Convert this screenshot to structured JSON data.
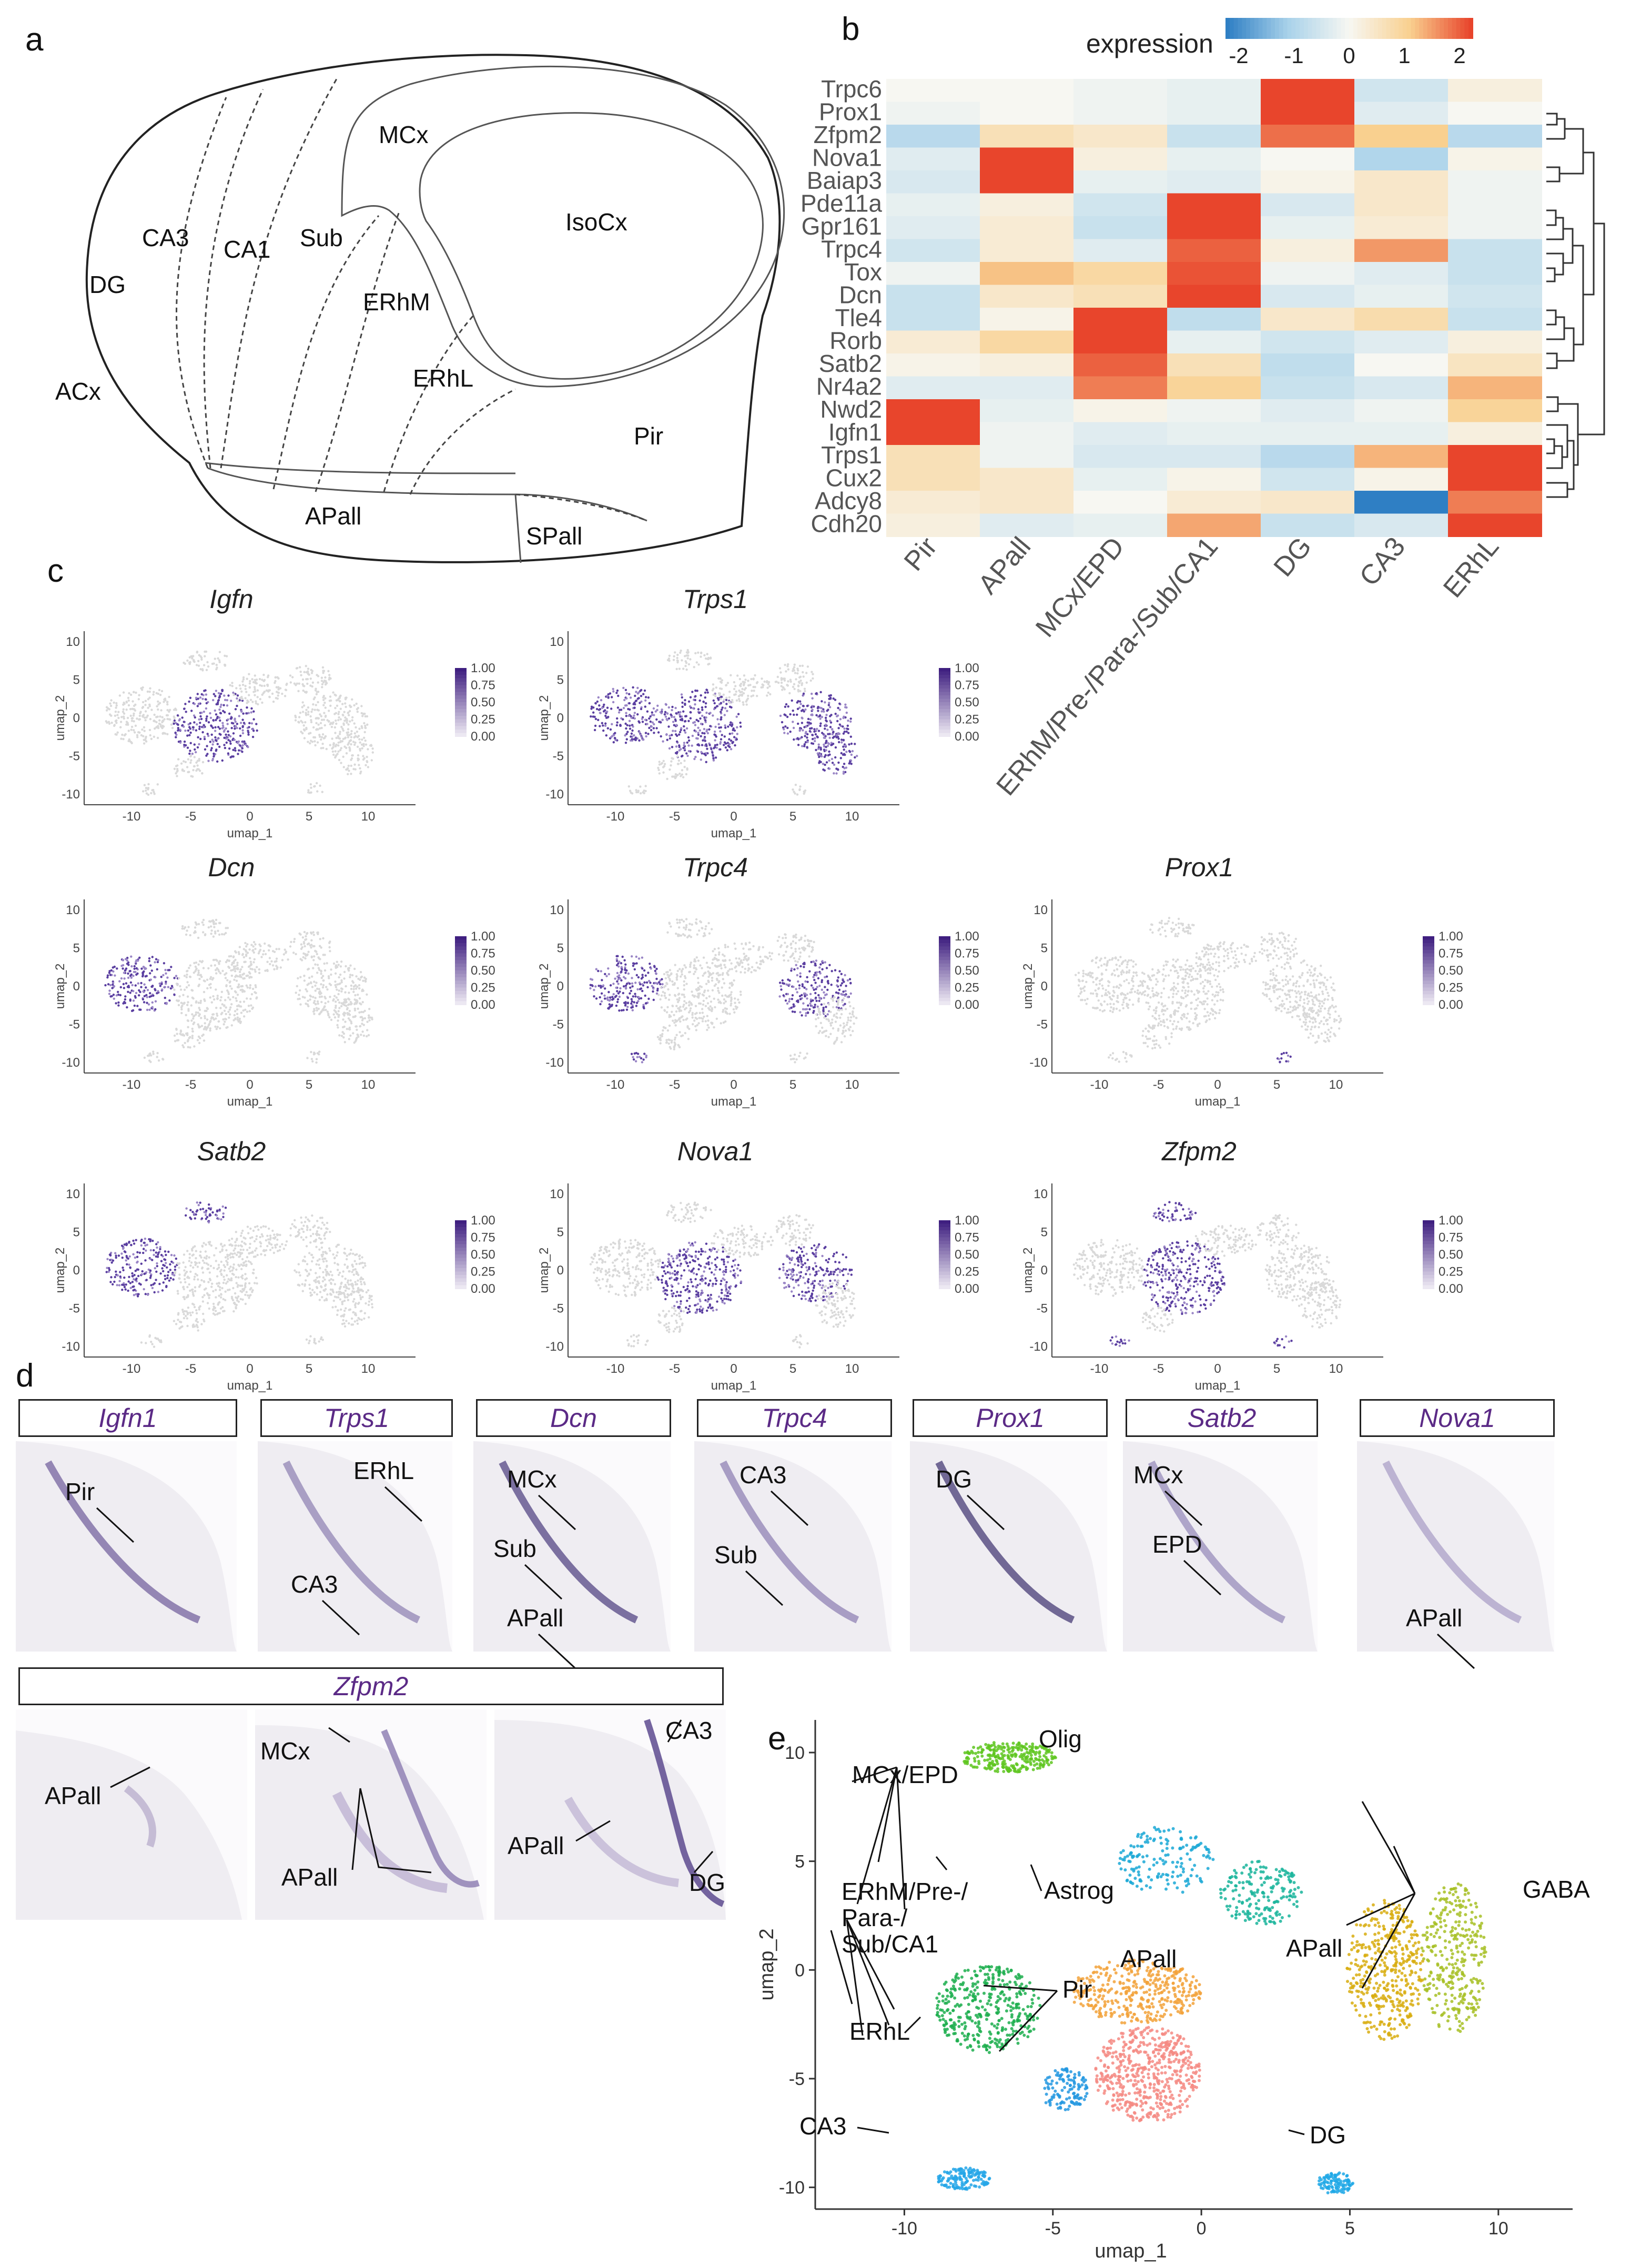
{
  "panels": {
    "a": "a",
    "b": "b",
    "c": "c",
    "d": "d",
    "e": "e"
  },
  "brain": {
    "regions": [
      "MCx",
      "IsoCx",
      "CA3",
      "CA1",
      "Sub",
      "DG",
      "ERhM",
      "ERhL",
      "ACx",
      "Pir",
      "APall",
      "SPall"
    ]
  },
  "heatmap": {
    "legend_title": "expression",
    "legend_ticks": [
      "-2",
      "-1",
      "0",
      "1",
      "2"
    ],
    "genes": [
      "Trpc6",
      "Prox1",
      "Zfpm2",
      "Nova1",
      "Baiap3",
      "Pde11a",
      "Gpr161",
      "Trpc4",
      "Tox",
      "Dcn",
      "Tle4",
      "Rorb",
      "Satb2",
      "Nr4a2",
      "Nwd2",
      "Igfn1",
      "Trps1",
      "Cux2",
      "Adcy8",
      "Cdh20"
    ],
    "columns": [
      "Pir",
      "APall",
      "MCx/EPD",
      "ERhM/Pre-/Para-/Sub/CA1",
      "DG",
      "CA3",
      "ERhL"
    ]
  },
  "chart_data": [
    {
      "type": "heatmap",
      "title": "",
      "legend": "expression",
      "range": [
        -2,
        2
      ],
      "rows": [
        "Trpc6",
        "Prox1",
        "Zfpm2",
        "Nova1",
        "Baiap3",
        "Pde11a",
        "Gpr161",
        "Trpc4",
        "Tox",
        "Dcn",
        "Tle4",
        "Rorb",
        "Satb2",
        "Nr4a2",
        "Nwd2",
        "Igfn1",
        "Trps1",
        "Cux2",
        "Adcy8",
        "Cdh20"
      ],
      "columns": [
        "Pir",
        "APall",
        "MCx/EPD",
        "ERhM/Pre-/Para-/Sub/CA1",
        "DG",
        "CA3",
        "ERhL"
      ],
      "values": [
        [
          0.0,
          0.0,
          -0.1,
          -0.2,
          2.0,
          -0.5,
          0.2
        ],
        [
          -0.1,
          0.0,
          -0.1,
          -0.2,
          2.0,
          -0.3,
          0.0
        ],
        [
          -0.8,
          0.6,
          0.4,
          -0.6,
          1.7,
          1.0,
          -0.8
        ],
        [
          -0.3,
          2.0,
          0.2,
          -0.2,
          0.0,
          -0.9,
          0.1
        ],
        [
          -0.4,
          2.0,
          -0.2,
          -0.3,
          0.1,
          0.4,
          -0.1
        ],
        [
          -0.2,
          0.2,
          -0.5,
          2.0,
          -0.4,
          0.4,
          -0.1
        ],
        [
          -0.3,
          0.3,
          -0.6,
          2.0,
          -0.2,
          0.3,
          -0.1
        ],
        [
          -0.5,
          0.3,
          -0.3,
          1.8,
          0.2,
          1.4,
          -0.6
        ],
        [
          -0.1,
          1.1,
          0.8,
          1.9,
          -0.1,
          -0.3,
          -0.6
        ],
        [
          -0.6,
          0.4,
          0.6,
          2.0,
          -0.4,
          -0.2,
          -0.5
        ],
        [
          -0.6,
          0.1,
          2.0,
          -0.7,
          0.4,
          0.7,
          -0.6
        ],
        [
          0.3,
          0.8,
          2.0,
          -0.2,
          -0.5,
          -0.3,
          0.2
        ],
        [
          0.1,
          0.2,
          1.8,
          0.6,
          -0.7,
          0.0,
          0.5
        ],
        [
          -0.3,
          -0.3,
          1.6,
          0.9,
          -0.6,
          -0.4,
          1.2
        ],
        [
          2.0,
          -0.2,
          0.1,
          -0.1,
          -0.3,
          -0.1,
          0.9
        ],
        [
          2.0,
          -0.1,
          -0.3,
          -0.2,
          -0.2,
          -0.2,
          0.2
        ],
        [
          0.6,
          -0.1,
          -0.4,
          -0.4,
          -0.8,
          1.2,
          2.0
        ],
        [
          0.6,
          0.4,
          -0.2,
          0.1,
          -0.5,
          0.1,
          2.0
        ],
        [
          0.3,
          0.4,
          0.0,
          0.3,
          0.4,
          -2.0,
          1.6
        ],
        [
          0.2,
          -0.3,
          -0.2,
          1.3,
          -0.6,
          -0.4,
          2.0
        ]
      ]
    },
    {
      "type": "scatter",
      "title": "",
      "xlabel": "umap_1",
      "ylabel": "umap_2",
      "xlim": [
        -13,
        12.5
      ],
      "ylim": [
        -11,
        11.5
      ],
      "x_ticks": [
        -10,
        -5,
        0,
        5,
        10
      ],
      "y_ticks": [
        -10,
        -5,
        0,
        5,
        10
      ],
      "clusters": [
        {
          "name": "MCx/EPD",
          "color": "#5ec61e",
          "x": -6.5,
          "y": 9.8
        },
        {
          "name": "Olig",
          "color": "#1aa8d6",
          "x": -1.2,
          "y": 5.0
        },
        {
          "name": "Astrog",
          "color": "#19b49b",
          "x": 2.0,
          "y": 3.5
        },
        {
          "name": "APall (cortex-like)",
          "color": "#f2a23a",
          "x": -2.2,
          "y": -1.0
        },
        {
          "name": "Pir",
          "color": "#f48a82",
          "x": -1.8,
          "y": -4.8
        },
        {
          "name": "APall (GABA-side)",
          "color": "#d8ad0f",
          "x": 6.2,
          "y": 0.0
        },
        {
          "name": "GABA",
          "color": "#a7bf24",
          "x": 8.5,
          "y": 0.5
        },
        {
          "name": "ERhM/Pre-/Para-/Sub/CA1",
          "color": "#1cae4e",
          "x": -7.2,
          "y": -1.8
        },
        {
          "name": "ERhL",
          "color": "#2398e0",
          "x": -4.6,
          "y": -5.5
        },
        {
          "name": "CA3",
          "color": "#25a6e8",
          "x": -8.0,
          "y": -9.6
        },
        {
          "name": "DG",
          "color": "#1ea8e6",
          "x": 4.5,
          "y": -9.8
        }
      ]
    }
  ],
  "umap_panels": {
    "axis_x": "umap_1",
    "axis_y": "umap_2",
    "legend_ticks": [
      "1.00",
      "0.75",
      "0.50",
      "0.25",
      "0.00"
    ],
    "x_ticks": [
      "-10",
      "-5",
      "0",
      "5",
      "10"
    ],
    "y_ticks": [
      "10",
      "5",
      "0",
      "-5",
      "-10"
    ],
    "items": [
      {
        "gene": "Igfn"
      },
      {
        "gene": "Trps1"
      },
      {
        "gene": "Dcn"
      },
      {
        "gene": "Trpc4"
      },
      {
        "gene": "Prox1"
      },
      {
        "gene": "Satb2"
      },
      {
        "gene": "Nova1"
      },
      {
        "gene": "Zfpm2"
      }
    ]
  },
  "ish": {
    "top": [
      {
        "gene": "Igfn1",
        "labels": [
          "Pir"
        ]
      },
      {
        "gene": "Trps1",
        "labels": [
          "CA3",
          "ERhL"
        ]
      },
      {
        "gene": "Dcn",
        "labels": [
          "MCx",
          "Sub",
          "APall"
        ]
      },
      {
        "gene": "Trpc4",
        "labels": [
          "CA3",
          "Sub"
        ]
      },
      {
        "gene": "Prox1",
        "labels": [
          "DG"
        ]
      },
      {
        "gene": "Satb2",
        "labels": [
          "MCx",
          "EPD"
        ]
      },
      {
        "gene": "Nova1",
        "labels": [
          "APall"
        ]
      }
    ],
    "zfpm2": {
      "gene": "Zfpm2",
      "labels": [
        "APall",
        "MCx",
        "APall",
        "CA3",
        "APall",
        "DG"
      ]
    }
  },
  "panel_e": {
    "labels": {
      "mcx": "MCx/EPD",
      "olig": "Olig",
      "erhm1": "ERhM/Pre-/",
      "erhm2": "Para-/",
      "erhm3": "Sub/CA1",
      "astrog": "Astrog",
      "apall_left": "APall",
      "apall_right": "APall",
      "gaba": "GABA",
      "pir": "Pir",
      "erhl": "ERhL",
      "ca3": "CA3",
      "dg": "DG"
    }
  }
}
